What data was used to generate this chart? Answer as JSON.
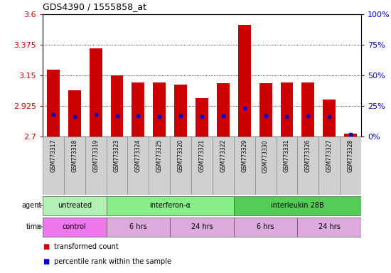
{
  "title": "GDS4390 / 1555858_at",
  "samples": [
    "GSM773317",
    "GSM773318",
    "GSM773319",
    "GSM773323",
    "GSM773324",
    "GSM773325",
    "GSM773320",
    "GSM773321",
    "GSM773322",
    "GSM773329",
    "GSM773330",
    "GSM773331",
    "GSM773326",
    "GSM773327",
    "GSM773328"
  ],
  "transformed_count": [
    3.19,
    3.04,
    3.35,
    3.15,
    3.1,
    3.1,
    3.08,
    2.98,
    3.09,
    3.52,
    3.09,
    3.1,
    3.1,
    2.97,
    2.72
  ],
  "percentile_rank": [
    18,
    16,
    18,
    17,
    17,
    16,
    17,
    16,
    17,
    23,
    17,
    16,
    17,
    16,
    2
  ],
  "y_min": 2.7,
  "y_max": 3.6,
  "y_ticks": [
    2.7,
    2.925,
    3.15,
    3.375,
    3.6
  ],
  "y2_ticks": [
    0,
    25,
    50,
    75,
    100
  ],
  "bar_color": "#cc0000",
  "dot_color": "#0000cc",
  "agent_groups": [
    {
      "label": "untreated",
      "start": 0,
      "end": 3,
      "color": "#b3f0b3"
    },
    {
      "label": "interferon-α",
      "start": 3,
      "end": 9,
      "color": "#88ee88"
    },
    {
      "label": "interleukin 28B",
      "start": 9,
      "end": 15,
      "color": "#55cc55"
    }
  ],
  "time_groups": [
    {
      "label": "control",
      "start": 0,
      "end": 3,
      "color": "#ee77ee"
    },
    {
      "label": "6 hrs",
      "start": 3,
      "end": 6,
      "color": "#ddaadd"
    },
    {
      "label": "24 hrs",
      "start": 6,
      "end": 9,
      "color": "#ddaadd"
    },
    {
      "label": "6 hrs",
      "start": 9,
      "end": 12,
      "color": "#ddaadd"
    },
    {
      "label": "24 hrs",
      "start": 12,
      "end": 15,
      "color": "#ddaadd"
    }
  ],
  "tick_label_color_left": "#cc0000",
  "tick_label_color_right": "#0000cc",
  "sample_box_color": "#d0d0d0",
  "chart_bg": "#ffffff"
}
